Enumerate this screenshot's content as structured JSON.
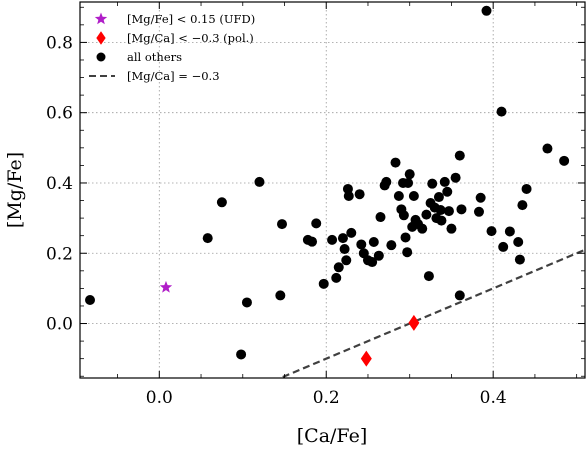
{
  "chart_data": {
    "type": "scatter",
    "xlabel": "[Ca/Fe]",
    "ylabel": "[Mg/Fe]",
    "xlim": [
      -0.095,
      0.51
    ],
    "ylim": [
      -0.155,
      0.915
    ],
    "x_ticks": [
      {
        "value": 0.0,
        "label": "0.0"
      },
      {
        "value": 0.2,
        "label": "0.2"
      },
      {
        "value": 0.4,
        "label": "0.4"
      }
    ],
    "y_ticks": [
      {
        "value": 0.0,
        "label": "0.0"
      },
      {
        "value": 0.2,
        "label": "0.2"
      },
      {
        "value": 0.4,
        "label": "0.4"
      },
      {
        "value": 0.6,
        "label": "0.6"
      },
      {
        "value": 0.8,
        "label": "0.8"
      }
    ],
    "grid": true,
    "legend_position": "top-left",
    "colors": {
      "ufd": "#b01ec8",
      "pol": "#ff0000",
      "others": "#000000",
      "line": "#404040"
    },
    "legend": [
      {
        "marker": "star",
        "label": "[Mg/Fe] < 0.15 (UFD)"
      },
      {
        "marker": "diamond",
        "label": "[Mg/Ca] < −0.3 (pol.)"
      },
      {
        "marker": "circle",
        "label": "all others"
      },
      {
        "marker": "dashed-line",
        "label": "[Mg/Ca] = −0.3"
      }
    ],
    "series": [
      {
        "name": "[Mg/Fe] < 0.15 (UFD)",
        "marker": "star",
        "points": [
          [
            0.008,
            0.103
          ]
        ]
      },
      {
        "name": "[Mg/Ca] < −0.3 (pol.)",
        "marker": "diamond",
        "points": [
          [
            0.248,
            -0.1
          ],
          [
            0.305,
            0.002
          ]
        ]
      },
      {
        "name": "all others",
        "marker": "circle",
        "points": [
          [
            -0.083,
            0.067
          ],
          [
            0.058,
            0.243
          ],
          [
            0.075,
            0.345
          ],
          [
            0.098,
            -0.088
          ],
          [
            0.105,
            0.06
          ],
          [
            0.12,
            0.403
          ],
          [
            0.145,
            0.08
          ],
          [
            0.147,
            0.283
          ],
          [
            0.178,
            0.238
          ],
          [
            0.183,
            0.233
          ],
          [
            0.188,
            0.285
          ],
          [
            0.197,
            0.113
          ],
          [
            0.207,
            0.238
          ],
          [
            0.212,
            0.13
          ],
          [
            0.215,
            0.16
          ],
          [
            0.22,
            0.243
          ],
          [
            0.222,
            0.212
          ],
          [
            0.224,
            0.18
          ],
          [
            0.226,
            0.383
          ],
          [
            0.227,
            0.363
          ],
          [
            0.23,
            0.258
          ],
          [
            0.24,
            0.368
          ],
          [
            0.242,
            0.225
          ],
          [
            0.245,
            0.2
          ],
          [
            0.25,
            0.18
          ],
          [
            0.255,
            0.175
          ],
          [
            0.257,
            0.232
          ],
          [
            0.263,
            0.193
          ],
          [
            0.265,
            0.303
          ],
          [
            0.27,
            0.393
          ],
          [
            0.272,
            0.403
          ],
          [
            0.278,
            0.223
          ],
          [
            0.283,
            0.458
          ],
          [
            0.287,
            0.363
          ],
          [
            0.29,
            0.325
          ],
          [
            0.292,
            0.4
          ],
          [
            0.293,
            0.308
          ],
          [
            0.295,
            0.245
          ],
          [
            0.297,
            0.203
          ],
          [
            0.298,
            0.4
          ],
          [
            0.3,
            0.425
          ],
          [
            0.303,
            0.275
          ],
          [
            0.305,
            0.363
          ],
          [
            0.307,
            0.295
          ],
          [
            0.31,
            0.283
          ],
          [
            0.315,
            0.27
          ],
          [
            0.32,
            0.31
          ],
          [
            0.323,
            0.135
          ],
          [
            0.325,
            0.343
          ],
          [
            0.327,
            0.398
          ],
          [
            0.33,
            0.33
          ],
          [
            0.332,
            0.3
          ],
          [
            0.335,
            0.36
          ],
          [
            0.337,
            0.323
          ],
          [
            0.338,
            0.293
          ],
          [
            0.342,
            0.403
          ],
          [
            0.345,
            0.375
          ],
          [
            0.347,
            0.32
          ],
          [
            0.35,
            0.27
          ],
          [
            0.355,
            0.415
          ],
          [
            0.36,
            0.478
          ],
          [
            0.36,
            0.08
          ],
          [
            0.362,
            0.325
          ],
          [
            0.383,
            0.318
          ],
          [
            0.385,
            0.358
          ],
          [
            0.392,
            0.89
          ],
          [
            0.398,
            0.263
          ],
          [
            0.41,
            0.603
          ],
          [
            0.412,
            0.218
          ],
          [
            0.42,
            0.262
          ],
          [
            0.43,
            0.232
          ],
          [
            0.432,
            0.182
          ],
          [
            0.435,
            0.337
          ],
          [
            0.44,
            0.383
          ],
          [
            0.465,
            0.498
          ],
          [
            0.485,
            0.463
          ]
        ]
      }
    ],
    "reference_line": {
      "label": "[Mg/Ca] = −0.3",
      "style": "dashed",
      "slope": 1.0,
      "intercept": -0.3
    }
  }
}
